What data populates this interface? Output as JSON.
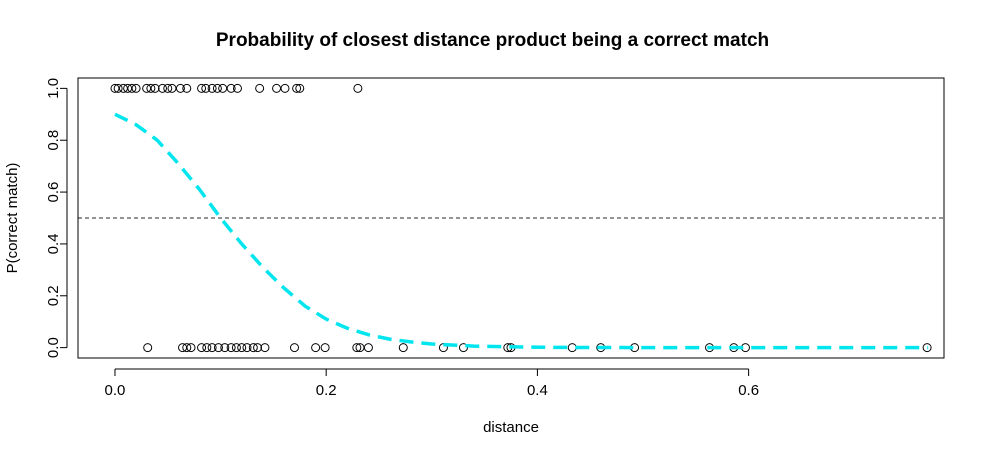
{
  "chart_data": {
    "type": "scatter",
    "title": "Probability of closest distance product being a correct match",
    "xlabel": "distance",
    "ylabel": "P(correct match)",
    "xlim": [
      -0.035,
      0.785
    ],
    "ylim": [
      -0.04,
      1.04
    ],
    "x_ticks": [
      0.0,
      0.2,
      0.4,
      0.6
    ],
    "x_tick_labels": [
      "0.0",
      "0.2",
      "0.4",
      "0.6"
    ],
    "y_ticks": [
      0.0,
      0.2,
      0.4,
      0.6,
      0.8,
      1.0
    ],
    "y_tick_labels": [
      "0.0",
      "0.2",
      "0.4",
      "0.6",
      "0.8",
      "1.0"
    ],
    "reference_line": {
      "y": 0.5,
      "style": "dashed",
      "color": "#555555"
    },
    "curve": {
      "style": "dashed",
      "color": "#00E5EE",
      "x": [
        0.0,
        0.02,
        0.04,
        0.06,
        0.08,
        0.1,
        0.12,
        0.14,
        0.16,
        0.18,
        0.2,
        0.22,
        0.24,
        0.26,
        0.28,
        0.3,
        0.34,
        0.38,
        0.42,
        0.46,
        0.5,
        0.55,
        0.6,
        0.65,
        0.7,
        0.77
      ],
      "y": [
        0.9,
        0.86,
        0.8,
        0.71,
        0.61,
        0.5,
        0.4,
        0.31,
        0.23,
        0.16,
        0.11,
        0.075,
        0.05,
        0.033,
        0.022,
        0.014,
        0.006,
        0.003,
        0.001,
        0.0005,
        0.0002,
        0.0001,
        0.0,
        0.0,
        0.0,
        0.0
      ]
    },
    "points": {
      "marker": "open-circle",
      "matched_y": 1,
      "matched_x": [
        0.0,
        0.003,
        0.008,
        0.012,
        0.016,
        0.02,
        0.03,
        0.034,
        0.038,
        0.045,
        0.05,
        0.054,
        0.062,
        0.068,
        0.082,
        0.086,
        0.092,
        0.097,
        0.102,
        0.11,
        0.116,
        0.137,
        0.153,
        0.161,
        0.172,
        0.175,
        0.23
      ],
      "unmatched_y": 0,
      "unmatched_x": [
        0.031,
        0.064,
        0.068,
        0.072,
        0.082,
        0.087,
        0.092,
        0.098,
        0.104,
        0.11,
        0.115,
        0.12,
        0.125,
        0.131,
        0.135,
        0.142,
        0.17,
        0.19,
        0.199,
        0.229,
        0.232,
        0.24,
        0.273,
        0.311,
        0.33,
        0.372,
        0.375,
        0.433,
        0.46,
        0.492,
        0.563,
        0.586,
        0.597,
        0.769
      ]
    }
  }
}
